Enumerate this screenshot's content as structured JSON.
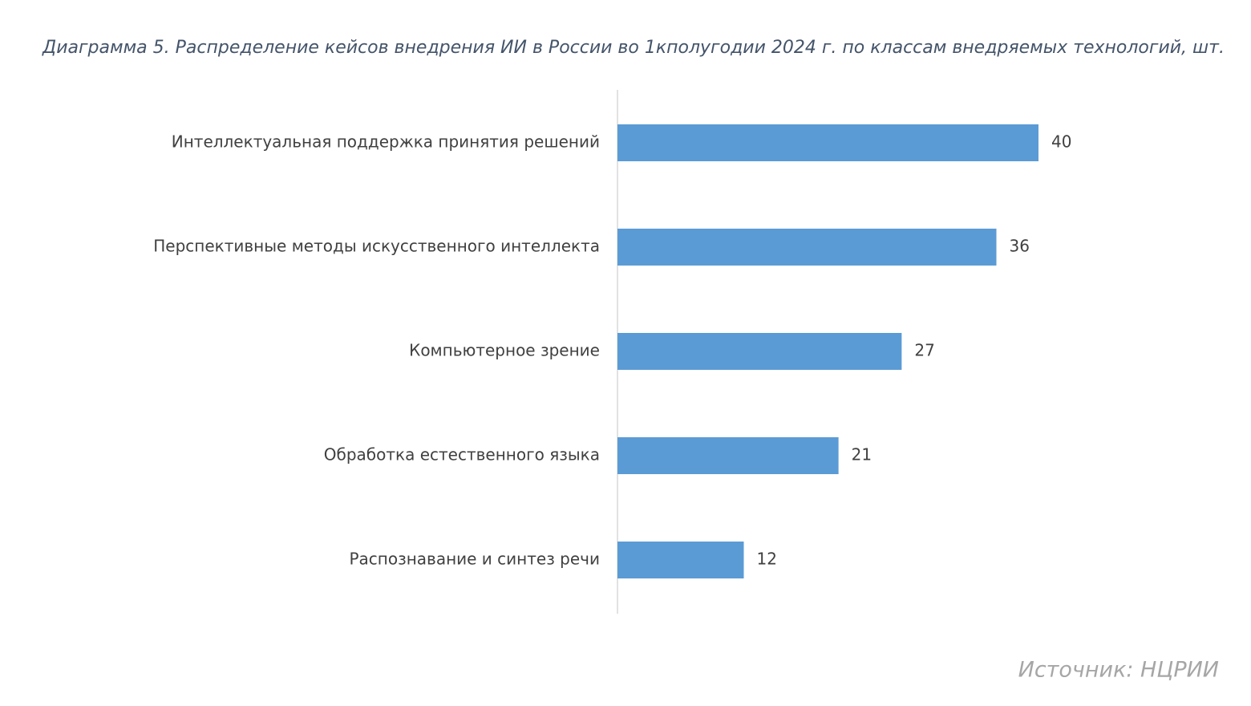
{
  "chart_data": {
    "type": "bar",
    "orientation": "horizontal",
    "title": "Диаграмма 5. Распределение кейсов внедрения ИИ в России во 1кполугодии 2024 г. по классам внедряемых технологий, шт.",
    "categories": [
      "Интеллектуальная поддержка принятия решений",
      "Перспективные методы искусственного интеллекта",
      "Компьютерное зрение",
      "Обработка естественного языка",
      "Распознавание и синтез речи"
    ],
    "values": [
      40,
      36,
      27,
      21,
      12
    ],
    "color": "#5b9bd5",
    "source": "Источник: НЦРИИ"
  }
}
